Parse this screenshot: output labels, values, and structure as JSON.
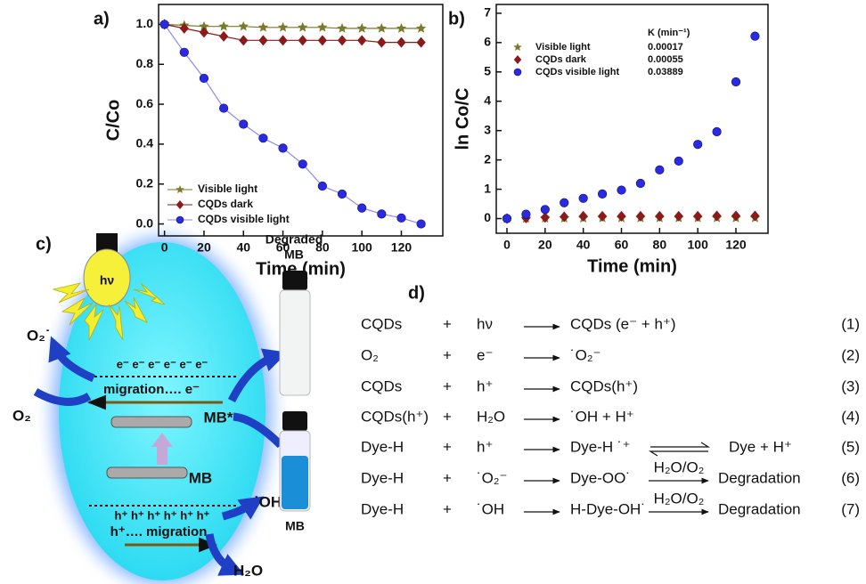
{
  "chart_data": [
    {
      "type": "line",
      "title": "a)",
      "x_label": "Time (min)",
      "y_label": "C/Co",
      "x": [
        0,
        10,
        20,
        30,
        40,
        50,
        60,
        70,
        80,
        90,
        100,
        110,
        120,
        130
      ],
      "xlim": [
        -3,
        141
      ],
      "xticks": [
        0,
        20,
        40,
        60,
        80,
        100,
        120
      ],
      "ylim": [
        -0.06,
        1.1
      ],
      "yticks": [
        {
          "value": 0,
          "label": "0.0"
        },
        0.2,
        0.4,
        0.6,
        0.8,
        {
          "value": 1,
          "label": "1.0"
        }
      ],
      "legend": "lower left",
      "line": true,
      "series": [
        {
          "name": "Visible light",
          "color": "#7a7a2a",
          "marker": "star",
          "values": [
            1.0,
            0.995,
            0.99,
            0.99,
            0.99,
            0.985,
            0.985,
            0.985,
            0.985,
            0.98,
            0.98,
            0.98,
            0.98,
            0.98
          ]
        },
        {
          "name": "CQDs dark",
          "color": "#8b1a1a",
          "marker": "diamond",
          "values": [
            1.0,
            0.98,
            0.96,
            0.94,
            0.92,
            0.92,
            0.92,
            0.92,
            0.92,
            0.92,
            0.92,
            0.91,
            0.91,
            0.91
          ]
        },
        {
          "name": "CQDs visible light",
          "color": "#2a2ae0",
          "marker": "circle",
          "values": [
            1.0,
            0.86,
            0.73,
            0.58,
            0.5,
            0.43,
            0.38,
            0.3,
            0.19,
            0.15,
            0.08,
            0.05,
            0.03,
            0.0
          ]
        }
      ]
    },
    {
      "type": "scatter",
      "title": "b)",
      "x_label": "Time (min)",
      "y_label": "ln Co/C",
      "x": [
        0,
        10,
        20,
        30,
        40,
        50,
        60,
        70,
        80,
        90,
        100,
        110,
        120,
        130
      ],
      "xlim": [
        -5.6,
        136.8
      ],
      "xticks": [
        0,
        20,
        40,
        60,
        80,
        100,
        120
      ],
      "ylim": [
        -0.5,
        7.3
      ],
      "yticks": [
        0,
        1,
        2,
        3,
        4,
        5,
        6,
        7
      ],
      "legend": "upper left",
      "line": false,
      "k_header": "K (min⁻¹)",
      "series": [
        {
          "name": "Visible light",
          "color": "#7a7a2a",
          "marker": "star",
          "k": "0.00017",
          "values": [
            0,
            0,
            0.01,
            0.01,
            0.01,
            0.02,
            0.02,
            0.02,
            0.02,
            0.02,
            0.02,
            0.02,
            0.02,
            0.02
          ]
        },
        {
          "name": "CQDs dark",
          "color": "#8b1a1a",
          "marker": "diamond",
          "k": "0.00055",
          "values": [
            0,
            0.02,
            0.04,
            0.06,
            0.08,
            0.08,
            0.08,
            0.08,
            0.08,
            0.08,
            0.08,
            0.09,
            0.09,
            0.09
          ]
        },
        {
          "name": "CQDs visible light",
          "color": "#2a2ae0",
          "marker": "circle",
          "k": "0.03889",
          "values": [
            0,
            0.15,
            0.31,
            0.54,
            0.69,
            0.84,
            0.97,
            1.2,
            1.66,
            1.96,
            2.53,
            2.96,
            4.66,
            6.22
          ]
        }
      ]
    }
  ],
  "diagram": {
    "label": "c)",
    "light": "hν",
    "degraded_1": "Degraded",
    "degraded_2": "MB",
    "o2_radical": "O₂˙",
    "o2": "O₂",
    "electrons": "e⁻  e⁻  e⁻  e⁻  e⁻  e⁻",
    "migration_top": "migration…. e⁻",
    "mb_star": "MB*",
    "mb": "MB",
    "holes": "h⁺  h⁺  h⁺  h⁺  h⁺  h⁺",
    "migration_bottom": "h⁺…. migration",
    "oh": "˙OH",
    "h2o": "H₂O",
    "vial_label": "MB"
  },
  "equations": {
    "label": "d)",
    "plus": "+",
    "rows": [
      {
        "reactant_1": "CQDs",
        "reactant_2": "hν",
        "product": "CQDs (e⁻ + h⁺)",
        "number": "(1)"
      },
      {
        "reactant_1": "O₂",
        "reactant_2": "e⁻",
        "product": "˙O₂⁻",
        "number": "(2)"
      },
      {
        "reactant_1": "CQDs",
        "reactant_2": "h⁺",
        "product": "CQDs(h⁺)",
        "number": "(3)"
      },
      {
        "reactant_1": "CQDs(h⁺)",
        "reactant_2": "H₂O",
        "product": "˙OH  +  H⁺",
        "number": "(4)"
      },
      {
        "reactant_1": "Dye-H",
        "reactant_2": "h⁺",
        "product": "Dye-H ˙⁺",
        "next_product": "Dye   + H⁺",
        "number": "(5)"
      },
      {
        "reactant_1": "Dye-H",
        "reactant_2": "˙O₂⁻",
        "product": "Dye-OO˙",
        "over_arrow": "H₂O/O₂",
        "next_product": "Degradation",
        "number": "(6)"
      },
      {
        "reactant_1": "Dye-H",
        "reactant_2": "˙OH",
        "product": "H-Dye-OH˙",
        "over_arrow": "H₂O/O₂",
        "next_product": "Degradation",
        "number": "(7)"
      }
    ]
  }
}
